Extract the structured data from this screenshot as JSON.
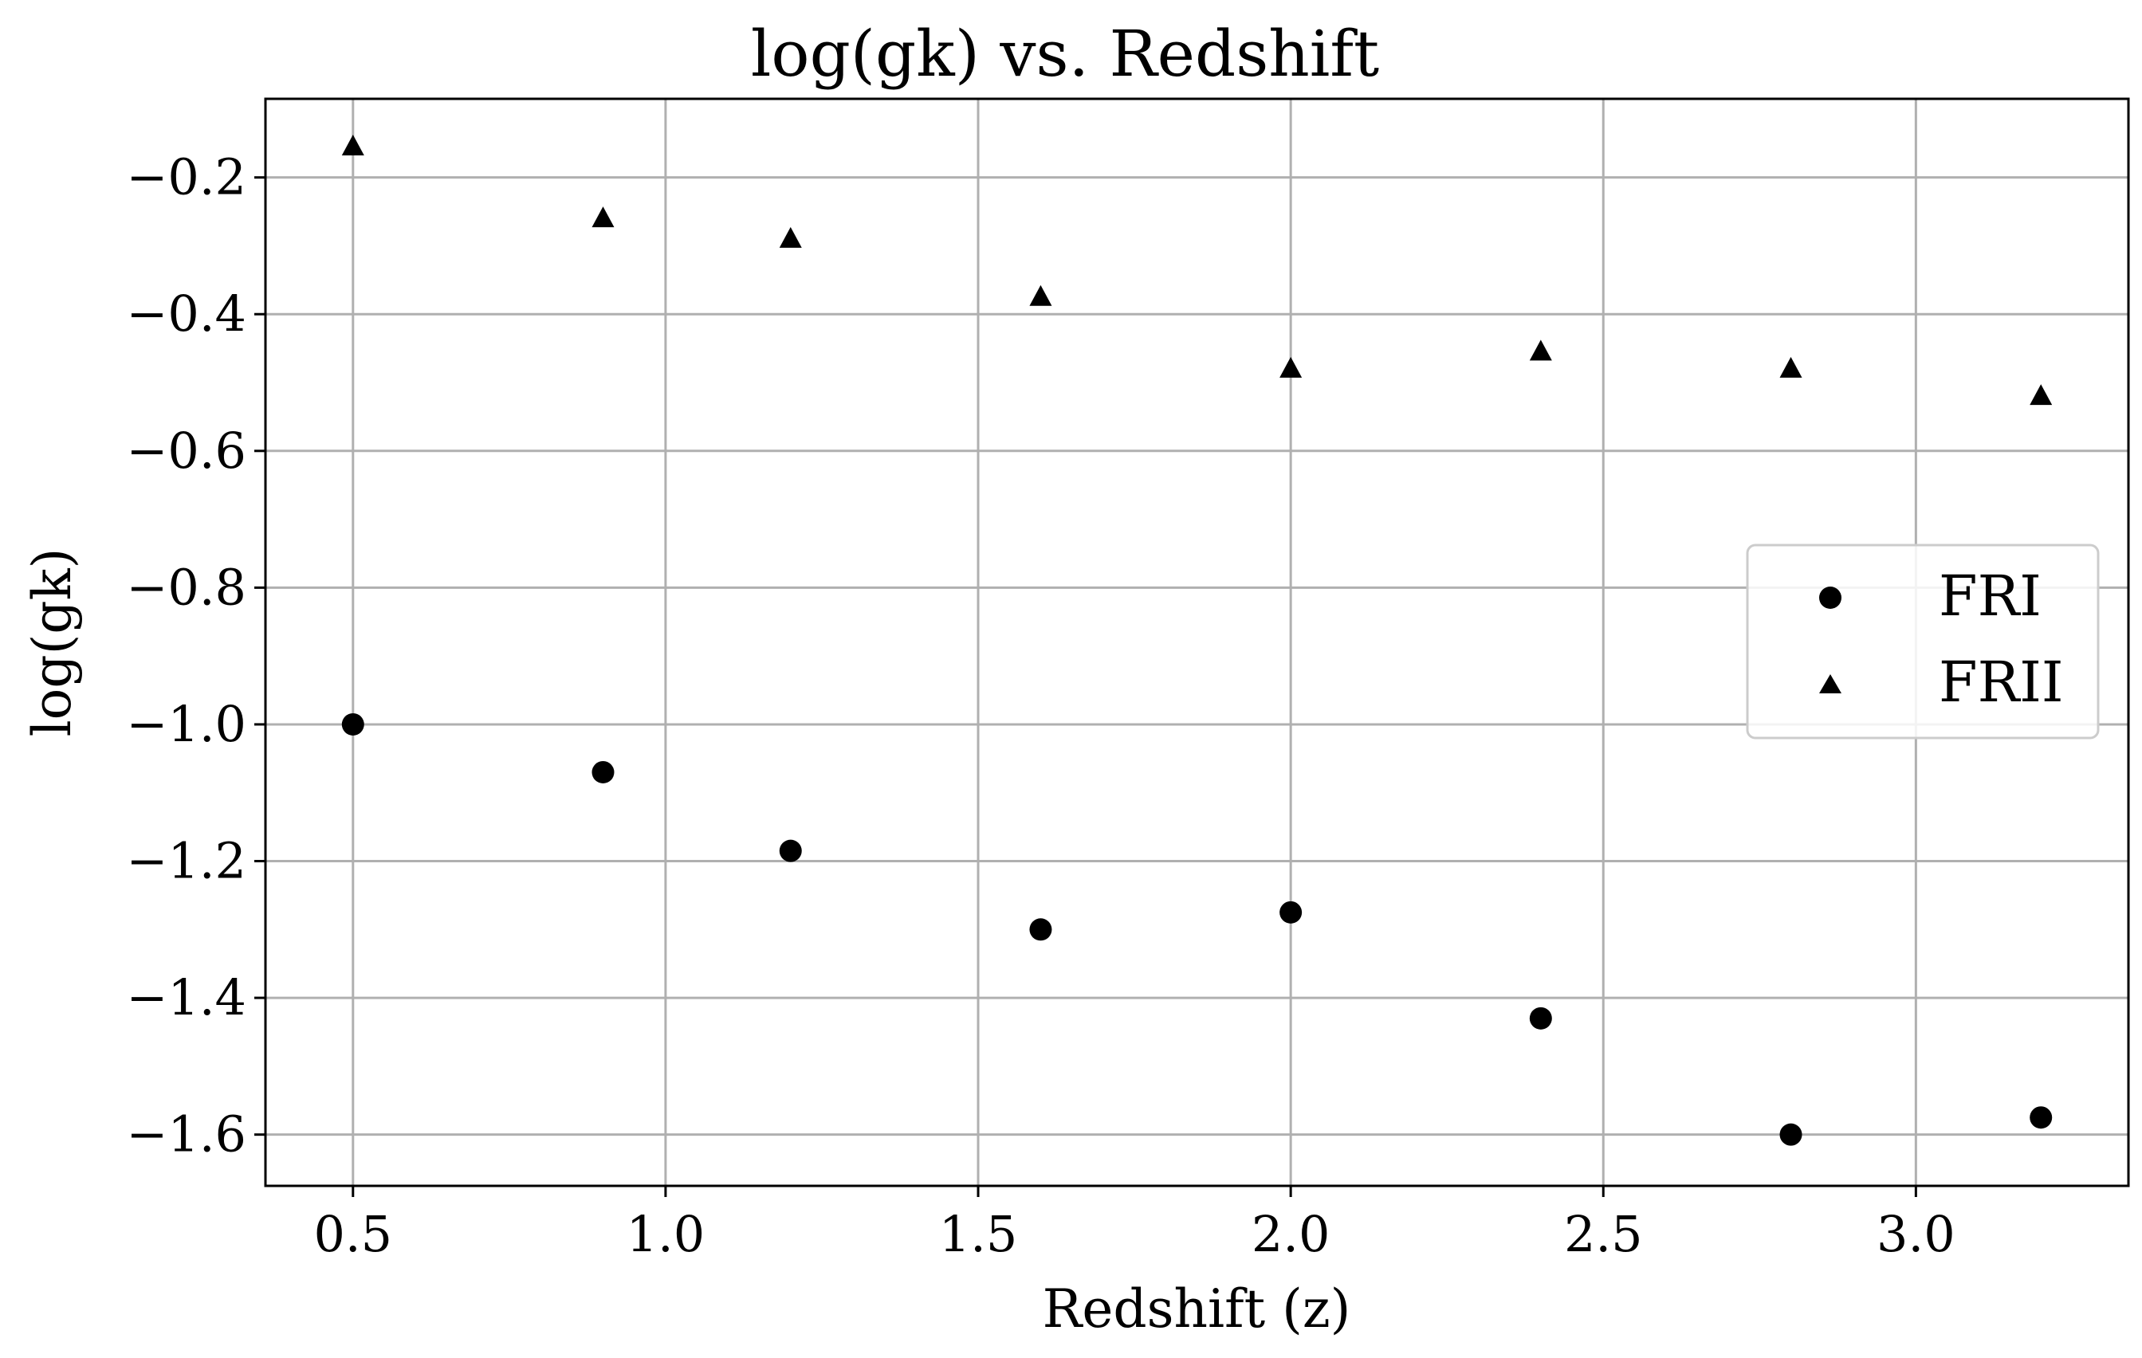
{
  "chart_data": {
    "type": "scatter",
    "title": "log(gk) vs. Redshift",
    "xlabel": "Redshift (z)",
    "ylabel": "log(gk)",
    "xlim": [
      0.36,
      3.34
    ],
    "ylim": [
      -1.675,
      -0.085
    ],
    "xticks": [
      0.5,
      1.0,
      1.5,
      2.0,
      2.5,
      3.0
    ],
    "xtick_labels": [
      "0.5",
      "1.0",
      "1.5",
      "2.0",
      "2.5",
      "3.0"
    ],
    "yticks": [
      -0.2,
      -0.4,
      -0.6,
      -0.8,
      -1.0,
      -1.2,
      -1.4,
      -1.6
    ],
    "ytick_labels": [
      "−0.2",
      "−0.4",
      "−0.6",
      "−0.8",
      "−1.0",
      "−1.2",
      "−1.4",
      "−1.6"
    ],
    "grid": true,
    "legend_position": "center-right",
    "series": [
      {
        "name": "FRI",
        "marker": "circle",
        "color": "#000000",
        "x": [
          0.5,
          0.9,
          1.2,
          1.6,
          2.0,
          2.4,
          2.8,
          3.2
        ],
        "y": [
          -1.0,
          -1.07,
          -1.185,
          -1.3,
          -1.275,
          -1.43,
          -1.6,
          -1.575
        ]
      },
      {
        "name": "FRII",
        "marker": "triangle",
        "color": "#000000",
        "x": [
          0.5,
          0.9,
          1.2,
          1.6,
          2.0,
          2.4,
          2.8,
          3.2
        ],
        "y": [
          -0.155,
          -0.26,
          -0.29,
          -0.375,
          -0.48,
          -0.455,
          -0.48,
          -0.52
        ]
      }
    ]
  }
}
